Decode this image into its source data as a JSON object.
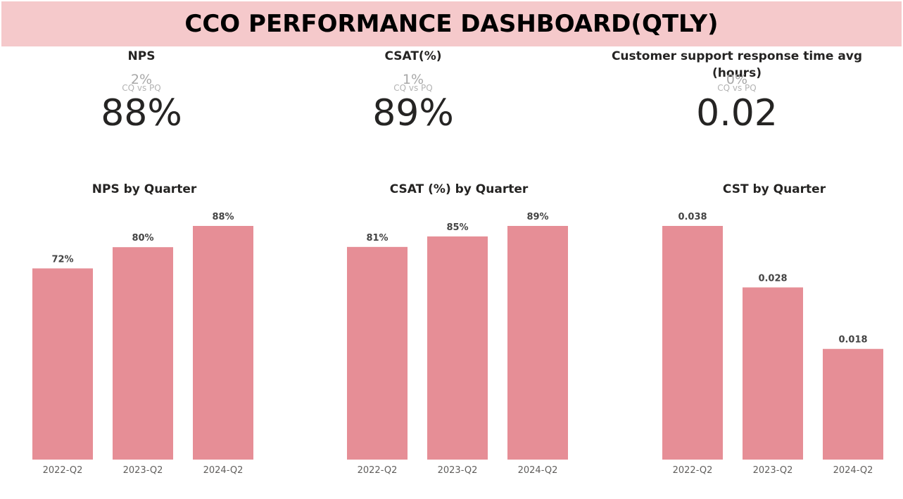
{
  "header": {
    "title": "CCO PERFORMANCE DASHBOARD(QTLY)"
  },
  "kpis": [
    {
      "title": "NPS",
      "delta": "2%",
      "delta_label": "CQ vs PQ",
      "value": "88%"
    },
    {
      "title": "CSAT(%)",
      "delta": "1%",
      "delta_label": "CQ vs PQ",
      "value": "89%"
    },
    {
      "title": "Customer support response time avg (hours)",
      "delta": "0%",
      "delta_label": "CQ vs PQ",
      "value": "0.02"
    }
  ],
  "colors": {
    "bar": "#e68e96",
    "header_bg": "#f5c9cb"
  },
  "chart_data": [
    {
      "type": "bar",
      "title": "NPS by Quarter",
      "categories": [
        "2022-Q2",
        "2023-Q2",
        "2024-Q2"
      ],
      "values": [
        72,
        80,
        88
      ],
      "data_labels": [
        "72%",
        "80%",
        "88%"
      ],
      "ylim": [
        0,
        88
      ],
      "grid": false
    },
    {
      "type": "bar",
      "title": "CSAT (%) by Quarter",
      "categories": [
        "2022-Q2",
        "2023-Q2",
        "2024-Q2"
      ],
      "values": [
        81,
        85,
        89
      ],
      "data_labels": [
        "81%",
        "85%",
        "89%"
      ],
      "ylim": [
        0,
        89
      ],
      "grid": false
    },
    {
      "type": "bar",
      "title": "CST by Quarter",
      "categories": [
        "2022-Q2",
        "2023-Q2",
        "2024-Q2"
      ],
      "values": [
        0.038,
        0.028,
        0.018
      ],
      "data_labels": [
        "0.038",
        "0.028",
        "0.018"
      ],
      "ylim": [
        0,
        0.038
      ],
      "grid": false
    }
  ]
}
